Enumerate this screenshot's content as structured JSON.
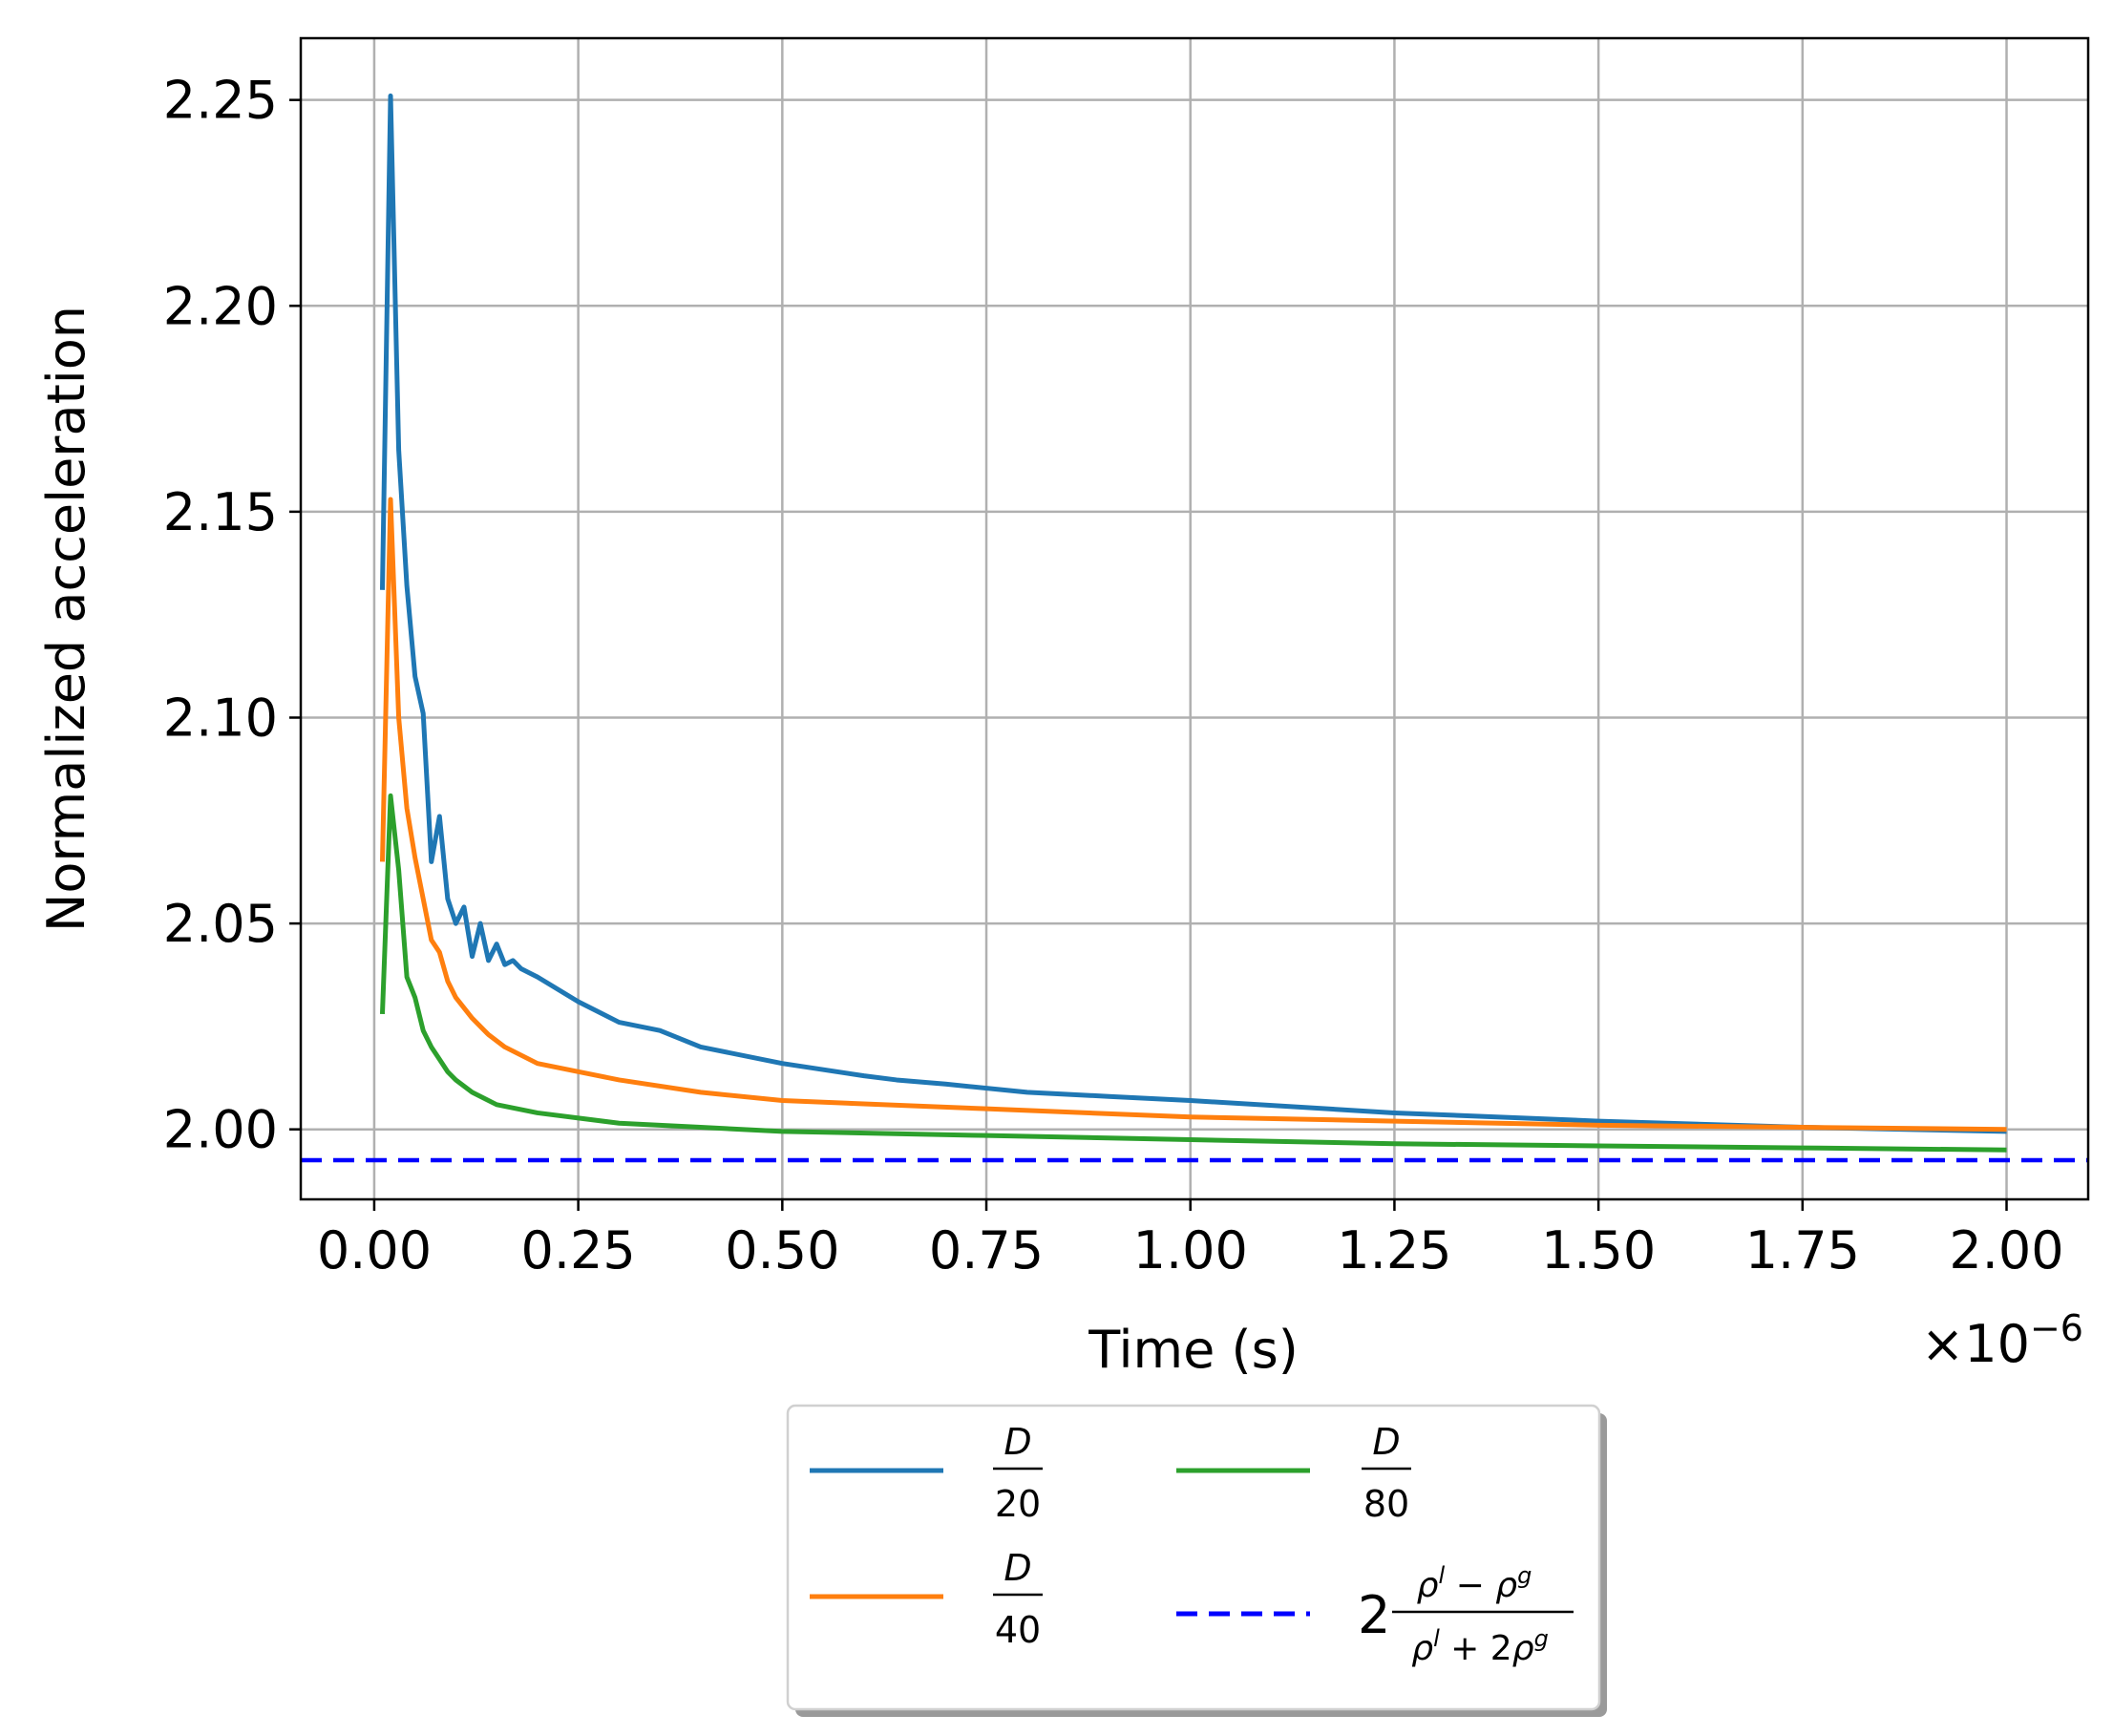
{
  "chart_data": {
    "type": "line",
    "xlabel": "Time (s)",
    "ylabel": "Normalized acceleration",
    "x_scale_label": "×10",
    "x_scale_exponent": "−6",
    "xlim": [
      -0.09,
      2.1
    ],
    "ylim": [
      1.983,
      2.265
    ],
    "x_ticks": [
      "0.00",
      "0.25",
      "0.50",
      "0.75",
      "1.00",
      "1.25",
      "1.50",
      "1.75",
      "2.00"
    ],
    "y_ticks": [
      "2.00",
      "2.05",
      "2.10",
      "2.15",
      "2.20",
      "2.25"
    ],
    "grid": true,
    "legend_position": "below",
    "series": [
      {
        "name": "D/20",
        "color": "#1f77b4",
        "x": [
          0.01,
          0.02,
          0.03,
          0.04,
          0.05,
          0.06,
          0.07,
          0.08,
          0.09,
          0.1,
          0.11,
          0.12,
          0.13,
          0.14,
          0.15,
          0.16,
          0.17,
          0.18,
          0.2,
          0.25,
          0.3,
          0.35,
          0.4,
          0.5,
          0.6,
          0.64,
          0.7,
          0.8,
          0.9,
          1.0,
          1.25,
          1.5,
          1.75,
          2.0
        ],
        "y": [
          2.131,
          2.251,
          2.165,
          2.132,
          2.11,
          2.101,
          2.065,
          2.076,
          2.056,
          2.05,
          2.054,
          2.042,
          2.05,
          2.041,
          2.045,
          2.04,
          2.041,
          2.039,
          2.037,
          2.031,
          2.026,
          2.024,
          2.02,
          2.016,
          2.013,
          2.012,
          2.011,
          2.009,
          2.008,
          2.007,
          2.004,
          2.002,
          2.0005,
          1.9995
        ]
      },
      {
        "name": "D/40",
        "color": "#ff7f0e",
        "x": [
          0.01,
          0.02,
          0.03,
          0.04,
          0.05,
          0.06,
          0.07,
          0.08,
          0.09,
          0.1,
          0.12,
          0.14,
          0.16,
          0.18,
          0.2,
          0.25,
          0.3,
          0.4,
          0.5,
          0.75,
          1.0,
          1.25,
          1.5,
          1.75,
          2.0
        ],
        "y": [
          2.065,
          2.153,
          2.1,
          2.078,
          2.066,
          2.056,
          2.046,
          2.043,
          2.036,
          2.032,
          2.027,
          2.023,
          2.02,
          2.018,
          2.016,
          2.014,
          2.012,
          2.009,
          2.007,
          2.005,
          2.003,
          2.002,
          2.001,
          2.0005,
          2.0
        ]
      },
      {
        "name": "D/80",
        "color": "#2ca02c",
        "x": [
          0.01,
          0.02,
          0.03,
          0.04,
          0.05,
          0.06,
          0.07,
          0.08,
          0.09,
          0.1,
          0.12,
          0.15,
          0.2,
          0.3,
          0.4,
          0.5,
          0.75,
          1.0,
          1.25,
          1.5,
          1.75,
          2.0
        ],
        "y": [
          2.028,
          2.081,
          2.063,
          2.037,
          2.032,
          2.024,
          2.02,
          2.017,
          2.014,
          2.012,
          2.009,
          2.006,
          2.004,
          2.0015,
          2.0005,
          1.9995,
          1.9985,
          1.9975,
          1.9965,
          1.996,
          1.9955,
          1.995
        ]
      },
      {
        "name": "2(ρ^l − ρ^g)/(ρ^l + 2ρ^g)",
        "color": "#0000ff",
        "dashed": true,
        "y_constant": 1.9925
      }
    ]
  }
}
